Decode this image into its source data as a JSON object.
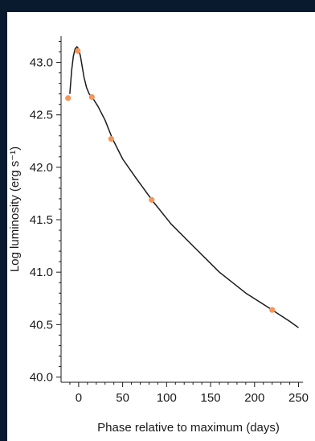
{
  "chart_data": {
    "type": "line",
    "title": "",
    "xlabel": "Phase relative to maximum (days)",
    "ylabel": "Log luminosity (erg s⁻¹)",
    "xlim": [
      -20,
      255
    ],
    "ylim": [
      39.95,
      43.25
    ],
    "xticks": [
      0,
      50,
      100,
      150,
      200,
      250
    ],
    "yticks": [
      40.0,
      40.5,
      41.0,
      41.5,
      42.0,
      42.5,
      43.0
    ],
    "ytick_labels": [
      "40.0",
      "40.5",
      "41.0",
      "41.5",
      "42.0",
      "42.5",
      "43.0"
    ],
    "grid": false,
    "legend": "none",
    "series": [
      {
        "kind": "curve",
        "color": "#1a1a1a",
        "x": [
          -10,
          -8,
          -6,
          -4,
          -2,
          0,
          2,
          4,
          6,
          9,
          12,
          16,
          22,
          30,
          38,
          50,
          65,
          85,
          105,
          130,
          160,
          190,
          220,
          240,
          250
        ],
        "y": [
          42.7,
          42.92,
          43.06,
          43.13,
          43.15,
          43.13,
          43.06,
          42.96,
          42.86,
          42.76,
          42.7,
          42.66,
          42.58,
          42.45,
          42.28,
          42.08,
          41.9,
          41.67,
          41.46,
          41.25,
          41.0,
          40.8,
          40.64,
          40.53,
          40.47
        ]
      },
      {
        "kind": "points",
        "color": "#f4955a",
        "x": [
          -12,
          -1,
          15,
          37,
          83,
          220
        ],
        "y": [
          42.66,
          43.11,
          42.67,
          42.27,
          41.69,
          40.64
        ]
      }
    ]
  }
}
